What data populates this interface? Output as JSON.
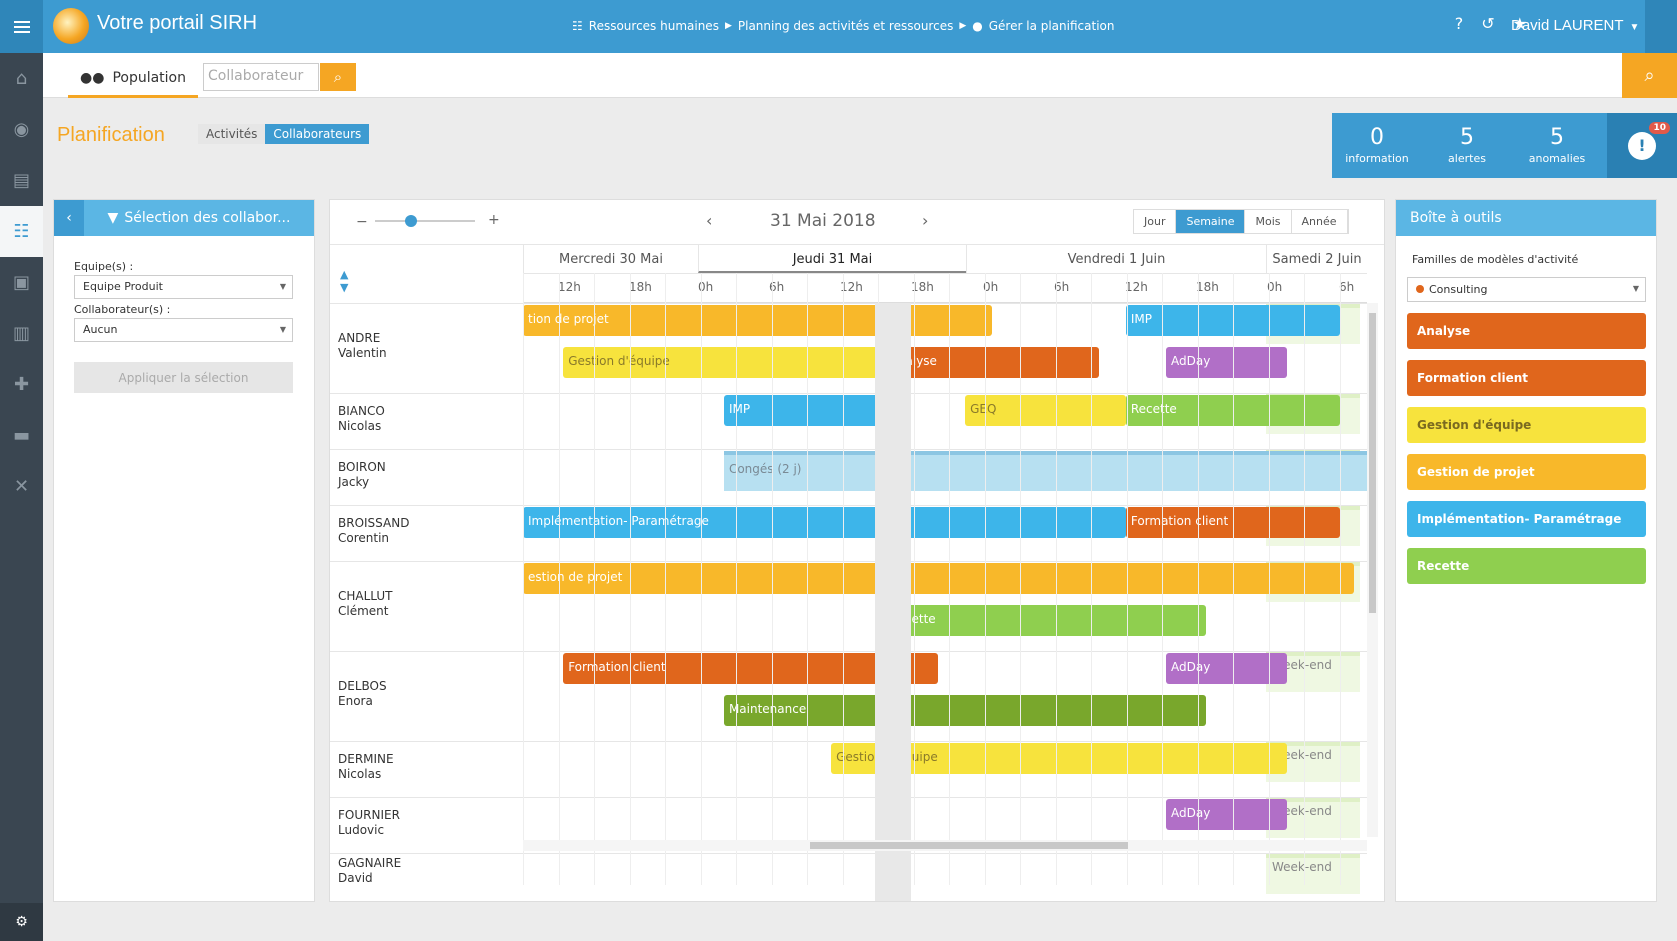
{
  "app": {
    "title": "Votre portail SIRH"
  },
  "breadcrumb": [
    "Ressources humaines",
    "Planning des activités et ressources",
    "Gérer la planification"
  ],
  "user": {
    "name": "David LAURENT"
  },
  "subbar": {
    "population_label": "Population",
    "search_placeholder": "Collaborateur"
  },
  "page": {
    "title": "Planification",
    "toggle": [
      "Activités",
      "Collaborateurs"
    ],
    "toggle_active": "Collaborateurs"
  },
  "stats": [
    {
      "value": "0",
      "label": "information"
    },
    {
      "value": "5",
      "label": "alertes"
    },
    {
      "value": "5",
      "label": "anomalies"
    }
  ],
  "alert_badge": "10",
  "left_panel": {
    "title": "Sélection des collabor...",
    "team_label": "Equipe(s) :",
    "team_value": "Equipe Produit",
    "collab_label": "Collaborateur(s) :",
    "collab_value": "Aucun",
    "apply_label": "Appliquer la sélection"
  },
  "calendar": {
    "current_date": "31 Mai 2018",
    "views": [
      "Jour",
      "Semaine",
      "Mois",
      "Année"
    ],
    "active_view": "Semaine",
    "zoom_minus": "−",
    "zoom_plus": "+",
    "days": [
      "Mercredi 30 Mai",
      "Jeudi 31 Mai",
      "Vendredi 1 Juin",
      "Samedi 2 Juin"
    ],
    "today": "Jeudi 31 Mai",
    "hour_labels": [
      "12h",
      "18h",
      "0h",
      "6h",
      "12h",
      "18h",
      "0h",
      "6h",
      "12h",
      "18h",
      "0h",
      "6h"
    ],
    "weekend_label": "Week-end",
    "employees": [
      {
        "last": "ANDRE",
        "first": "Valentin",
        "bars": [
          {
            "label": "tion de projet",
            "color": "#f8b82a",
            "start": 0,
            "end": 35,
            "lane": 0
          },
          {
            "label": "IMP",
            "color": "#3db5ea",
            "start": 45,
            "end": 61,
            "lane": 0
          },
          {
            "label": "Gestion d'équipe",
            "color": "#f7e33d",
            "start": 3,
            "end": 27,
            "lane": 1
          },
          {
            "label": "Analyse",
            "color": "#e0661c",
            "start": 27,
            "end": 43,
            "lane": 1
          },
          {
            "label": "AdDay",
            "color": "#b16fc7",
            "start": 48,
            "end": 57,
            "lane": 1
          }
        ]
      },
      {
        "last": "BIANCO",
        "first": "Nicolas",
        "bars": [
          {
            "label": "IMP",
            "color": "#3db5ea",
            "start": 15,
            "end": 28,
            "lane": 0
          },
          {
            "label": "GEQ",
            "color": "#f7e33d",
            "start": 33,
            "end": 45,
            "lane": 0
          },
          {
            "label": "Recette",
            "color": "#8fcf4f",
            "start": 45,
            "end": 61,
            "lane": 0
          }
        ]
      },
      {
        "last": "BOIRON",
        "first": "Jacky",
        "bars": [
          {
            "label": "Congés (2 j)",
            "color": "#b7e0f1",
            "start": 15,
            "end": 63,
            "lane": 0,
            "tall": true
          }
        ]
      },
      {
        "last": "BROISSAND",
        "first": "Corentin",
        "bars": [
          {
            "label": "Implémentation- Paramétrage",
            "color": "#3db5ea",
            "start": 0,
            "end": 45,
            "lane": 0
          },
          {
            "label": "Formation client",
            "color": "#e0661c",
            "start": 45,
            "end": 61,
            "lane": 0
          }
        ]
      },
      {
        "last": "CHALLUT",
        "first": "Clément",
        "bars": [
          {
            "label": "estion de projet",
            "color": "#f8b82a",
            "start": 0,
            "end": 62,
            "lane": 0
          },
          {
            "label": "Recette",
            "color": "#8fcf4f",
            "start": 27,
            "end": 51,
            "lane": 1
          }
        ]
      },
      {
        "last": "DELBOS",
        "first": "Enora",
        "bars": [
          {
            "label": "Formation client",
            "color": "#e0661c",
            "start": 3,
            "end": 31,
            "lane": 0
          },
          {
            "label": "AdDay",
            "color": "#b16fc7",
            "start": 48,
            "end": 57,
            "lane": 0
          },
          {
            "label": "Maintenance",
            "color": "#79a72c",
            "start": 15,
            "end": 51,
            "lane": 1
          }
        ]
      },
      {
        "last": "DERMINE",
        "first": "Nicolas",
        "bars": [
          {
            "label": "Gestion d'équipe",
            "color": "#f7e33d",
            "start": 23,
            "end": 57,
            "lane": 0
          }
        ]
      },
      {
        "last": "FOURNIER",
        "first": "Ludovic",
        "bars": [
          {
            "label": "AdDay",
            "color": "#b16fc7",
            "start": 48,
            "end": 57,
            "lane": 0
          }
        ]
      },
      {
        "last": "GAGNAIRE",
        "first": "David",
        "bars": []
      }
    ]
  },
  "toolbox": {
    "title": "Boîte à outils",
    "families_label": "Familles de modèles d'activité",
    "family_selected": "Consulting",
    "families": [
      {
        "label": "Analyse",
        "color": "#e0661c"
      },
      {
        "label": "Formation client",
        "color": "#e0661c"
      },
      {
        "label": "Gestion d'équipe",
        "color": "#f7e33d"
      },
      {
        "label": "Gestion de projet",
        "color": "#f8b82a"
      },
      {
        "label": "Implémentation- Paramétrage",
        "color": "#3db5ea"
      },
      {
        "label": "Recette",
        "color": "#8fcf4f"
      }
    ]
  }
}
